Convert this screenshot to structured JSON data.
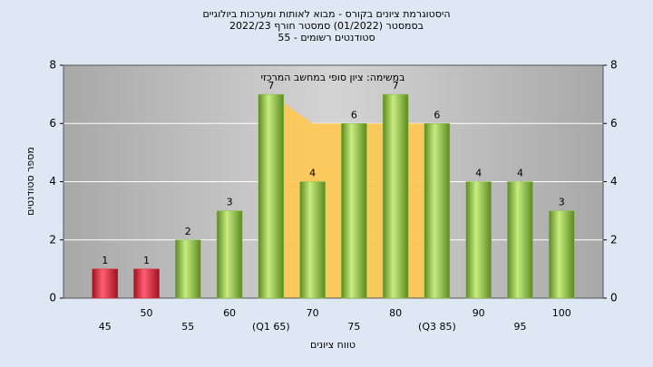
{
  "chart_data": {
    "type": "bar",
    "title": [
      "היסטוגרמת ציונים בקורס - מבוא לאותות ומערכות ביולוגיים",
      "בסמסטר  (01/2022)  סמסטר חורף 2022/23",
      "סטודנטים רשומים - 55"
    ],
    "annotation": "במשימה: ציון סופי במחשב המרכזי",
    "ylabel": "מספר סטודנטים",
    "xlabel": "טווח ציונים",
    "categories": [
      "45",
      "50",
      "55",
      "60",
      "(Q1 65)",
      "70",
      "75",
      "80",
      "(Q3 85)",
      "90",
      "95",
      "100"
    ],
    "values": [
      1,
      1,
      2,
      3,
      7,
      4,
      6,
      7,
      6,
      4,
      4,
      3
    ],
    "colors": [
      "#e02030",
      "#e02030",
      "#8cc040",
      "#8cc040",
      "#8cc040",
      "#8cc040",
      "#8cc040",
      "#8cc040",
      "#8cc040",
      "#8cc040",
      "#8cc040",
      "#8cc040"
    ],
    "ylim": [
      0,
      8
    ],
    "yticks": [
      0,
      2,
      4,
      6,
      8
    ],
    "grid": true
  }
}
